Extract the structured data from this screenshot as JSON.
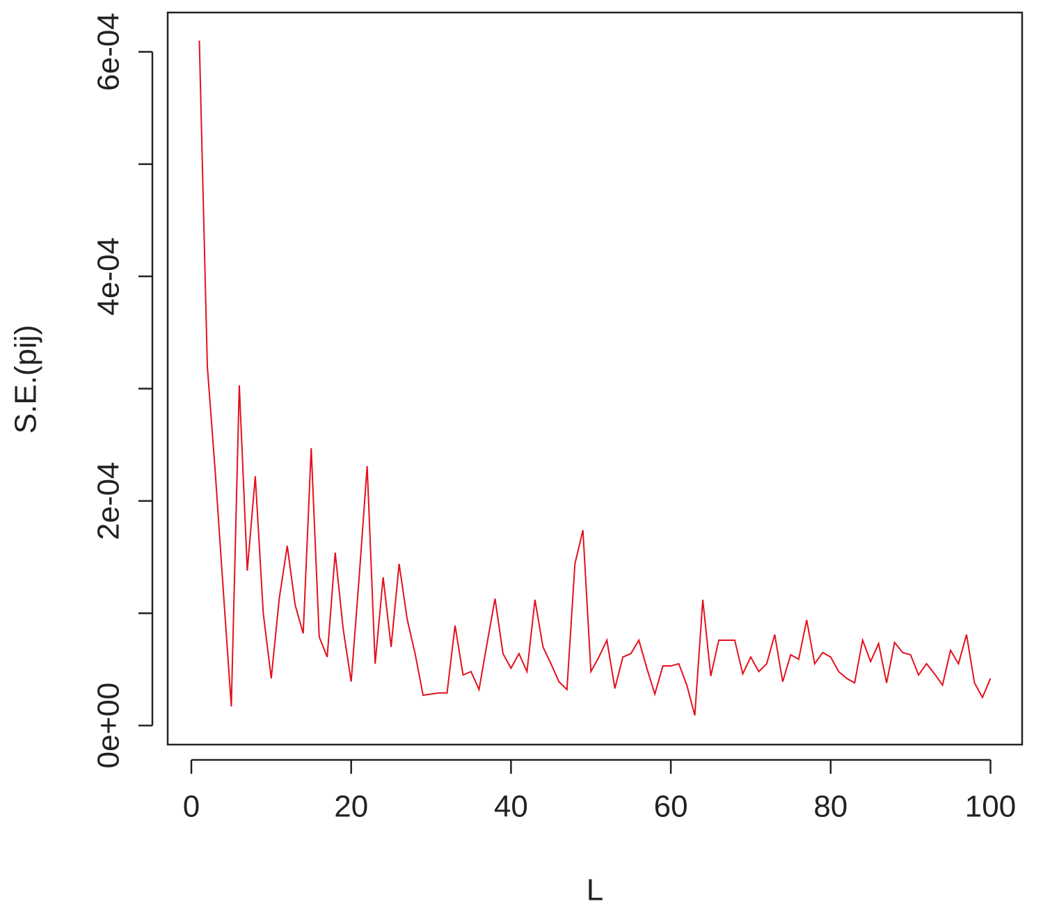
{
  "chart_data": {
    "type": "line",
    "x_label": "L",
    "y_label": "S.E.(pij)",
    "x": [
      1,
      2,
      3,
      4,
      5,
      6,
      7,
      8,
      9,
      10,
      11,
      12,
      13,
      14,
      15,
      16,
      17,
      18,
      19,
      20,
      21,
      22,
      23,
      24,
      25,
      26,
      27,
      28,
      29,
      30,
      31,
      32,
      33,
      34,
      35,
      36,
      37,
      38,
      39,
      40,
      41,
      42,
      43,
      44,
      45,
      46,
      47,
      48,
      49,
      50,
      51,
      52,
      53,
      54,
      55,
      56,
      57,
      58,
      59,
      60,
      61,
      62,
      63,
      64,
      65,
      66,
      67,
      68,
      69,
      70,
      71,
      72,
      73,
      74,
      75,
      76,
      77,
      78,
      79,
      80,
      81,
      82,
      83,
      84,
      85,
      86,
      87,
      88,
      89,
      90,
      91,
      92,
      93,
      94,
      95,
      96,
      97,
      98,
      99,
      100
    ],
    "values": [
      0.00061,
      0.00032,
      0.000225,
      0.00012,
      1.7e-05,
      0.000303,
      0.000138,
      0.000222,
      0.0001,
      4.2e-05,
      0.000113,
      0.00016,
      0.000107,
      8.2e-05,
      0.000247,
      7.9e-05,
      6.1e-05,
      0.000154,
      8.6e-05,
      3.9e-05,
      0.000132,
      0.000231,
      5.5e-05,
      0.000132,
      7e-05,
      0.000144,
      9.5e-05,
      6.4e-05,
      2.7e-05,
      2.8e-05,
      2.9e-05,
      2.9e-05,
      8.9e-05,
      4.5e-05,
      4.8e-05,
      3.2e-05,
      7.3e-05,
      0.000113,
      6.4e-05,
      5.1e-05,
      6.4e-05,
      4.8e-05,
      0.000112,
      7e-05,
      5.5e-05,
      3.9e-05,
      3.2e-05,
      0.000144,
      0.000174,
      4.8e-05,
      6.1e-05,
      7.6e-05,
      3.3e-05,
      6.1e-05,
      6.4e-05,
      7.6e-05,
      5.1e-05,
      2.8e-05,
      5.3e-05,
      5.3e-05,
      5.5e-05,
      3.6e-05,
      9e-06,
      0.000112,
      4.4e-05,
      7.6e-05,
      7.6e-05,
      7.6e-05,
      4.6e-05,
      6.1e-05,
      4.8e-05,
      5.5e-05,
      8.1e-05,
      3.9e-05,
      6.3e-05,
      5.9e-05,
      9.4e-05,
      5.5e-05,
      6.5e-05,
      6.1e-05,
      4.8e-05,
      4.2e-05,
      3.8e-05,
      7.6e-05,
      5.7e-05,
      7.3e-05,
      3.8e-05,
      7.4e-05,
      6.5e-05,
      6.3e-05,
      4.5e-05,
      5.5e-05,
      4.6e-05,
      3.6e-05,
      6.7e-05,
      5.5e-05,
      8.1e-05,
      3.8e-05,
      2.5e-05,
      4.2e-05
    ],
    "color": "#e3101c",
    "xlim": [
      -2.96,
      103.96
    ],
    "ylim": [
      -1.7e-05,
      0.000635
    ],
    "xticks": [
      0,
      20,
      40,
      60,
      80,
      100
    ],
    "yticks": [
      {
        "value": 0,
        "label": "0e+00"
      },
      {
        "value": 0.0001,
        "label": null
      },
      {
        "value": 0.0002,
        "label": "2e-04"
      },
      {
        "value": 0.0003,
        "label": null
      },
      {
        "value": 0.0004,
        "label": "4e-04"
      },
      {
        "value": 0.0005,
        "label": null
      },
      {
        "value": 0.0006,
        "label": "6e-04"
      }
    ]
  }
}
